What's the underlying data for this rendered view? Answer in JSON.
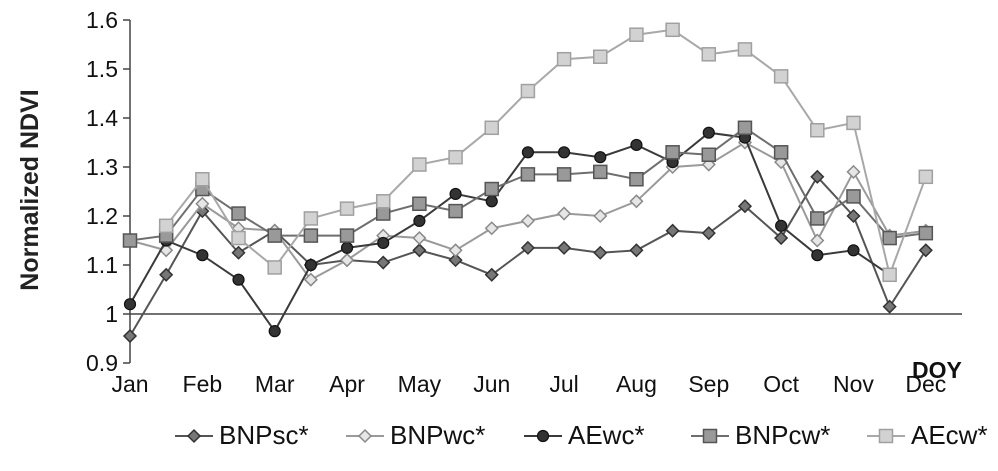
{
  "chart_data": {
    "type": "line",
    "title": "",
    "xlabel": "",
    "ylabel": "Normalized NDVI",
    "annotation": "DOY",
    "categories": [
      "Jan",
      "Feb",
      "Mar",
      "Apr",
      "May",
      "Jun",
      "Jul",
      "Aug",
      "Sep",
      "Oct",
      "Nov",
      "Dec"
    ],
    "xlim": [
      0,
      23
    ],
    "ylim": [
      0.9,
      1.6
    ],
    "yticks": [
      "1.6",
      "1.5",
      "1.4",
      "1.3",
      "1.2",
      "1.1",
      "1",
      "0.9"
    ],
    "ytick_values": [
      1.6,
      1.5,
      1.4,
      1.3,
      1.2,
      1.1,
      1.0,
      0.9
    ],
    "legend_position": "bottom",
    "grid": false,
    "x": [
      0,
      1,
      2,
      3,
      4,
      5,
      6,
      7,
      8,
      9,
      10,
      11,
      12,
      13,
      14,
      15,
      16,
      17,
      18,
      19,
      20,
      21,
      22,
      23
    ],
    "series": [
      {
        "name": "BNPsc*",
        "marker": "diamond",
        "color": "#555555",
        "values": [
          0.955,
          1.08,
          1.21,
          1.125,
          1.17,
          1.1,
          1.11,
          1.105,
          1.13,
          1.11,
          1.08,
          1.135,
          1.135,
          1.125,
          1.13,
          1.17,
          1.165,
          1.22,
          1.155,
          1.28,
          1.2,
          1.015,
          1.13,
          null
        ]
      },
      {
        "name": "BNPwc*",
        "marker": "diamond-open",
        "color": "#9a9a9a",
        "values": [
          1.15,
          1.13,
          1.225,
          1.175,
          1.17,
          1.07,
          1.11,
          1.16,
          1.155,
          1.13,
          1.175,
          1.19,
          1.205,
          1.2,
          1.23,
          1.3,
          1.305,
          1.35,
          1.31,
          1.15,
          1.29,
          1.16,
          1.17,
          null
        ]
      },
      {
        "name": "AEwc*",
        "marker": "circle",
        "color": "#3a3a3a",
        "values": [
          1.02,
          1.15,
          1.12,
          1.07,
          0.965,
          1.1,
          1.135,
          1.145,
          1.19,
          1.245,
          1.23,
          1.33,
          1.33,
          1.32,
          1.345,
          1.31,
          1.37,
          1.36,
          1.18,
          1.12,
          1.13,
          1.08,
          null,
          null
        ]
      },
      {
        "name": "BNPcw*",
        "marker": "square",
        "color": "#6e6e6e",
        "values": [
          1.15,
          1.16,
          1.255,
          1.205,
          1.16,
          1.16,
          1.16,
          1.205,
          1.225,
          1.21,
          1.255,
          1.285,
          1.285,
          1.29,
          1.275,
          1.33,
          1.325,
          1.38,
          1.33,
          1.195,
          1.24,
          1.155,
          1.165,
          null
        ]
      },
      {
        "name": "AEcw*",
        "marker": "square-light",
        "color": "#a8a8a8",
        "values": [
          null,
          1.18,
          1.275,
          1.155,
          1.095,
          1.195,
          1.215,
          1.23,
          1.305,
          1.32,
          1.38,
          1.455,
          1.52,
          1.525,
          1.57,
          1.58,
          1.53,
          1.54,
          1.485,
          1.375,
          1.39,
          1.08,
          1.28,
          null
        ]
      }
    ]
  }
}
